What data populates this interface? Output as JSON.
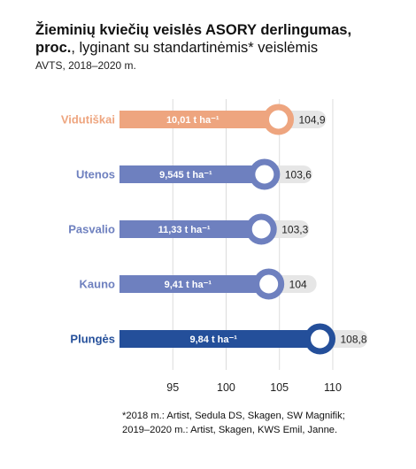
{
  "title_line1": "Žieminių kviečių veislės ASORY derlingumas,",
  "title_line2_bold": "proc.",
  "title_line2_rest": ", lyginant su standartinėmis* veislėmis",
  "subtitle": "AVTS, 2018–2020 m.",
  "footnote_line1": "*2018 m.: Artist, Sedula DS, Skagen, SW Magnifik;",
  "footnote_line2": "2019–2020 m.: Artist, Skagen, KWS Emil, Janne.",
  "colors": {
    "Vidutiškai": "#eea57f",
    "Utenos": "#6e80bf",
    "Pasvalio": "#6e80bf",
    "Kauno": "#6e80bf",
    "Plungės": "#244f9a",
    "grey": "#e6e6e6"
  },
  "chart_data": {
    "type": "bar",
    "orientation": "horizontal",
    "categories": [
      "Vidutiškai",
      "Utenos",
      "Pasvalio",
      "Kauno",
      "Plungės"
    ],
    "values": [
      104.9,
      103.6,
      103.3,
      104,
      108.8
    ],
    "value_labels": [
      "104,9",
      "103,6",
      "103,3",
      "104",
      "108,8"
    ],
    "yield_labels": [
      "10,01 t ha⁻¹",
      "9,545 t ha⁻¹",
      "11,33 t ha⁻¹",
      "9,41 t ha⁻¹",
      "9,84 t ha⁻¹"
    ],
    "xlim": [
      90,
      111
    ],
    "xticks": [
      95,
      100,
      105,
      110
    ],
    "grid": true
  }
}
